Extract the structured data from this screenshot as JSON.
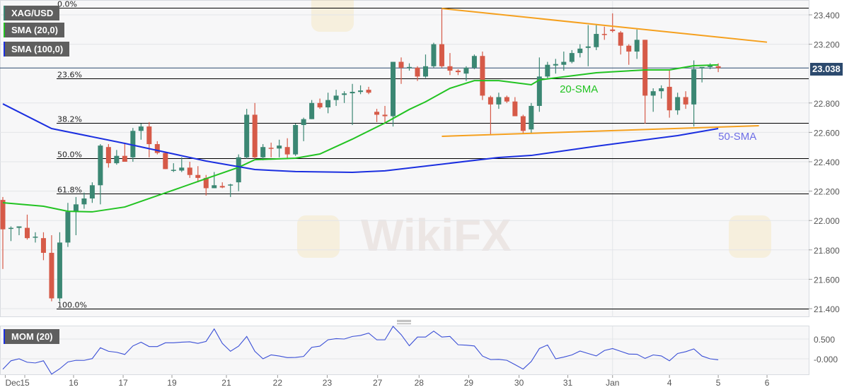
{
  "legend": {
    "symbol": "XAG/USD",
    "sma20": "SMA (20,0)",
    "sma100": "SMA (100,0)",
    "mom": "MOM (20)"
  },
  "current_price": "23.038",
  "watermark": "WikiFX",
  "colors": {
    "up": "#3b8773",
    "down": "#d65a48",
    "sma20": "#22c322",
    "sma100": "#1b2fe0",
    "trendline": "#f5a01e",
    "mom": "#3a4fd6",
    "fib": "#000000",
    "price_tag": "#2c4a6e",
    "annotation_50sma": "#6e6ee6"
  },
  "chart_data": [
    {
      "type": "candlestick",
      "title": "",
      "y_axis": {
        "ticks": [
          "23.400",
          "23.200",
          "22.800",
          "22.600",
          "22.400",
          "22.200",
          "22.000",
          "21.800",
          "21.600",
          "21.400"
        ],
        "range": [
          21.36,
          23.5
        ]
      },
      "x_axis": {
        "unit": "4-hour candle index",
        "ticks": [
          {
            "label": "Dec",
            "at": 0.3
          },
          {
            "label": "15",
            "at": 2.7
          },
          {
            "label": "16",
            "at": 8.7
          },
          {
            "label": "17",
            "at": 14.8
          },
          {
            "label": "19",
            "at": 20.8
          },
          {
            "label": "21",
            "at": 27.5
          },
          {
            "label": "22",
            "at": 33.8
          },
          {
            "label": "23",
            "at": 39.9
          },
          {
            "label": "27",
            "at": 46.1
          },
          {
            "label": "28",
            "at": 51.2
          },
          {
            "label": "29",
            "at": 57.3
          },
          {
            "label": "30",
            "at": 63.5
          },
          {
            "label": "31",
            "at": 69.5
          },
          {
            "label": "Jan",
            "at": 75
          },
          {
            "label": "4",
            "at": 82
          },
          {
            "label": "5",
            "at": 88
          },
          {
            "label": "6",
            "at": 94
          }
        ]
      },
      "ohlc": [
        [
          22.14,
          22.16,
          21.67,
          21.94
        ],
        [
          21.95,
          21.96,
          21.86,
          21.95
        ],
        [
          21.95,
          21.96,
          21.9,
          21.96
        ],
        [
          21.95,
          22.04,
          21.87,
          21.88
        ],
        [
          21.89,
          21.92,
          21.85,
          21.89
        ],
        [
          21.88,
          21.92,
          21.73,
          21.78
        ],
        [
          21.78,
          21.9,
          21.45,
          21.47
        ],
        [
          21.47,
          21.92,
          21.45,
          21.85
        ],
        [
          21.85,
          22.12,
          21.82,
          22.06
        ],
        [
          22.06,
          22.16,
          21.9,
          22.11
        ],
        [
          22.11,
          22.19,
          22.08,
          22.15
        ],
        [
          22.15,
          22.26,
          22.12,
          22.24
        ],
        [
          22.24,
          22.52,
          22.11,
          22.51
        ],
        [
          22.5,
          22.52,
          22.36,
          22.39
        ],
        [
          22.39,
          22.48,
          22.38,
          22.44
        ],
        [
          22.44,
          22.53,
          22.4,
          22.4
        ],
        [
          22.43,
          22.63,
          22.4,
          22.61
        ],
        [
          22.61,
          22.66,
          22.55,
          22.64
        ],
        [
          22.64,
          22.67,
          22.43,
          22.52
        ],
        [
          22.52,
          22.54,
          22.45,
          22.46
        ],
        [
          22.46,
          22.47,
          22.35,
          22.35
        ],
        [
          22.34,
          22.39,
          22.33,
          22.345
        ],
        [
          22.34,
          22.43,
          22.33,
          22.36
        ],
        [
          22.36,
          22.4,
          22.29,
          22.31
        ],
        [
          22.31,
          22.37,
          22.26,
          22.29
        ],
        [
          22.29,
          22.31,
          22.17,
          22.22
        ],
        [
          22.22,
          22.33,
          22.22,
          22.24
        ],
        [
          22.235,
          22.26,
          22.22,
          22.225
        ],
        [
          22.24,
          22.25,
          22.16,
          22.245
        ],
        [
          22.26,
          22.45,
          22.2,
          22.43
        ],
        [
          22.43,
          22.76,
          22.42,
          22.72
        ],
        [
          22.72,
          22.8,
          22.42,
          22.43
        ],
        [
          22.43,
          22.52,
          22.41,
          22.5
        ],
        [
          22.495,
          22.53,
          22.43,
          22.49
        ],
        [
          22.49,
          22.55,
          22.43,
          22.51
        ],
        [
          22.5,
          22.56,
          22.42,
          22.45
        ],
        [
          22.45,
          22.66,
          22.44,
          22.65
        ],
        [
          22.65,
          22.7,
          22.54,
          22.69
        ],
        [
          22.69,
          22.82,
          22.69,
          22.8
        ],
        [
          22.8,
          22.83,
          22.76,
          22.77
        ],
        [
          22.77,
          22.87,
          22.73,
          22.82
        ],
        [
          22.82,
          22.89,
          22.78,
          22.85
        ],
        [
          22.855,
          22.88,
          22.8,
          22.865
        ],
        [
          22.866,
          22.93,
          22.65,
          22.876
        ],
        [
          22.875,
          22.92,
          22.86,
          22.885
        ],
        [
          22.89,
          22.91,
          22.86,
          22.87
        ],
        [
          22.74,
          22.76,
          22.67,
          22.72
        ],
        [
          22.72,
          22.78,
          22.66,
          22.71
        ],
        [
          22.71,
          23.08,
          22.64,
          23.08
        ],
        [
          23.08,
          23.11,
          22.93,
          23.04
        ],
        [
          23.04,
          23.07,
          23.02,
          23.045
        ],
        [
          23.04,
          23.05,
          22.95,
          22.98
        ],
        [
          22.98,
          23.13,
          22.97,
          23.05
        ],
        [
          23.05,
          23.21,
          23.04,
          23.2
        ],
        [
          23.2,
          23.44,
          23.04,
          23.05
        ],
        [
          23.05,
          23.14,
          22.99,
          23.02
        ],
        [
          23.02,
          23.03,
          22.99,
          23.01
        ],
        [
          23.0,
          23.05,
          22.95,
          23.04
        ],
        [
          23.04,
          23.13,
          23.03,
          23.12
        ],
        [
          23.12,
          23.15,
          22.82,
          22.85
        ],
        [
          22.84,
          22.85,
          22.58,
          22.79
        ],
        [
          22.79,
          22.87,
          22.76,
          22.84
        ],
        [
          22.84,
          22.85,
          22.8,
          22.81
        ],
        [
          22.81,
          22.84,
          22.71,
          22.71
        ],
        [
          22.71,
          22.72,
          22.59,
          22.61
        ],
        [
          22.62,
          22.8,
          22.59,
          22.78
        ],
        [
          22.78,
          23.11,
          22.74,
          22.98
        ],
        [
          22.98,
          23.08,
          22.97,
          23.06
        ],
        [
          23.055,
          23.1,
          23.0,
          23.065
        ],
        [
          23.06,
          23.15,
          23.02,
          23.08
        ],
        [
          23.08,
          23.16,
          23.07,
          23.14
        ],
        [
          23.14,
          23.2,
          23.11,
          23.17
        ],
        [
          23.175,
          23.33,
          23.05,
          23.185
        ],
        [
          23.18,
          23.33,
          23.16,
          23.27
        ],
        [
          23.27,
          23.32,
          23.23,
          23.265
        ],
        [
          23.3,
          23.41,
          23.28,
          23.29
        ],
        [
          23.28,
          23.29,
          23.13,
          23.19
        ],
        [
          23.19,
          23.2,
          23.06,
          23.15
        ],
        [
          23.15,
          23.3,
          23.1,
          23.23
        ],
        [
          23.23,
          23.23,
          22.66,
          22.85
        ],
        [
          22.85,
          22.9,
          22.74,
          22.88
        ],
        [
          22.88,
          22.92,
          22.83,
          22.9
        ],
        [
          22.91,
          23.02,
          22.7,
          22.75
        ],
        [
          22.75,
          22.87,
          22.72,
          22.84
        ],
        [
          22.84,
          22.88,
          22.76,
          22.79
        ],
        [
          22.79,
          23.09,
          22.64,
          23.03
        ],
        [
          23.035,
          23.04,
          22.94,
          23.045
        ],
        [
          23.045,
          23.07,
          23.03,
          23.055
        ],
        [
          23.05,
          23.07,
          23.01,
          23.038
        ]
      ],
      "series": [
        {
          "name": "SMA (20,0)",
          "points": [
            [
              0,
              22.121
            ],
            [
              5,
              22.097
            ],
            [
              8,
              22.063
            ],
            [
              11,
              22.059
            ],
            [
              15,
              22.092
            ],
            [
              20,
              22.188
            ],
            [
              25,
              22.285
            ],
            [
              29,
              22.362
            ],
            [
              31,
              22.414
            ],
            [
              36,
              22.424
            ],
            [
              39,
              22.453
            ],
            [
              43,
              22.554
            ],
            [
              47,
              22.664
            ],
            [
              50,
              22.756
            ],
            [
              52,
              22.808
            ],
            [
              55,
              22.9
            ],
            [
              58,
              22.952
            ],
            [
              61,
              22.952
            ],
            [
              65,
              22.924
            ],
            [
              66,
              22.957
            ],
            [
              73,
              23.006
            ],
            [
              79,
              23.025
            ],
            [
              82,
              23.025
            ],
            [
              85,
              23.054
            ],
            [
              88,
              23.059
            ]
          ]
        },
        {
          "name": "SMA (100,0)",
          "points": [
            [
              0,
              22.794
            ],
            [
              6,
              22.626
            ],
            [
              15,
              22.525
            ],
            [
              25,
              22.405
            ],
            [
              31,
              22.347
            ],
            [
              36,
              22.333
            ],
            [
              43,
              22.328
            ],
            [
              47,
              22.338
            ],
            [
              61,
              22.429
            ],
            [
              65,
              22.443
            ],
            [
              73,
              22.506
            ],
            [
              83,
              22.578
            ],
            [
              88,
              22.626
            ]
          ]
        }
      ],
      "fibonacci": {
        "high": 23.448,
        "low": 21.4,
        "levels": [
          {
            "label": "0.0%",
            "price": 23.448
          },
          {
            "label": "23.6%",
            "price": 22.965
          },
          {
            "label": "38.2%",
            "price": 22.666
          },
          {
            "label": "50.0%",
            "price": 22.424
          },
          {
            "label": "61.8%",
            "price": 22.182
          },
          {
            "label": "100.0%",
            "price": 21.4
          }
        ]
      },
      "trendlines": [
        {
          "from": [
            54,
            23.443
          ],
          "to": [
            94,
            23.214
          ]
        },
        {
          "from": [
            54,
            22.573
          ],
          "to": [
            93,
            22.645
          ]
        }
      ],
      "annotations": [
        {
          "text": "20-SMA",
          "at": [
            68.5,
            22.87
          ]
        },
        {
          "text": "50-SMA",
          "at": [
            88,
            22.55
          ]
        }
      ]
    },
    {
      "type": "line",
      "title": "MOM (20)",
      "y_axis": {
        "ticks": [
          "0.500",
          "-0.000"
        ]
      },
      "values": [
        -0.264,
        -0.05,
        0.0,
        -0.087,
        -0.105,
        -0.05,
        -0.388,
        -0.252,
        -0.08,
        -0.038,
        -0.04,
        0.005,
        0.28,
        0.19,
        0.165,
        0.11,
        0.325,
        0.42,
        0.31,
        0.31,
        0.405,
        0.405,
        0.42,
        0.43,
        0.39,
        0.44,
        0.755,
        0.39,
        0.19,
        0.32,
        0.565,
        0.19,
        0.0,
        0.1,
        0.07,
        0.03,
        0.035,
        0.06,
        0.29,
        0.32,
        0.48,
        0.51,
        0.5,
        0.565,
        0.59,
        0.65,
        0.48,
        0.48,
        0.82,
        0.61,
        0.33,
        0.55,
        0.55,
        0.7,
        0.55,
        0.565,
        0.355,
        0.345,
        0.325,
        0.07,
        -0.02,
        -0.015,
        -0.038,
        -0.148,
        -0.26,
        -0.068,
        0.26,
        0.35,
        0.0,
        0.043,
        0.098,
        0.196,
        0.134,
        0.073,
        0.21,
        0.26,
        0.19,
        0.12,
        0.115,
        0.01,
        0.098,
        0.073,
        -0.05,
        0.134,
        0.18,
        0.25,
        0.07,
        0.0,
        -0.025
      ]
    }
  ]
}
